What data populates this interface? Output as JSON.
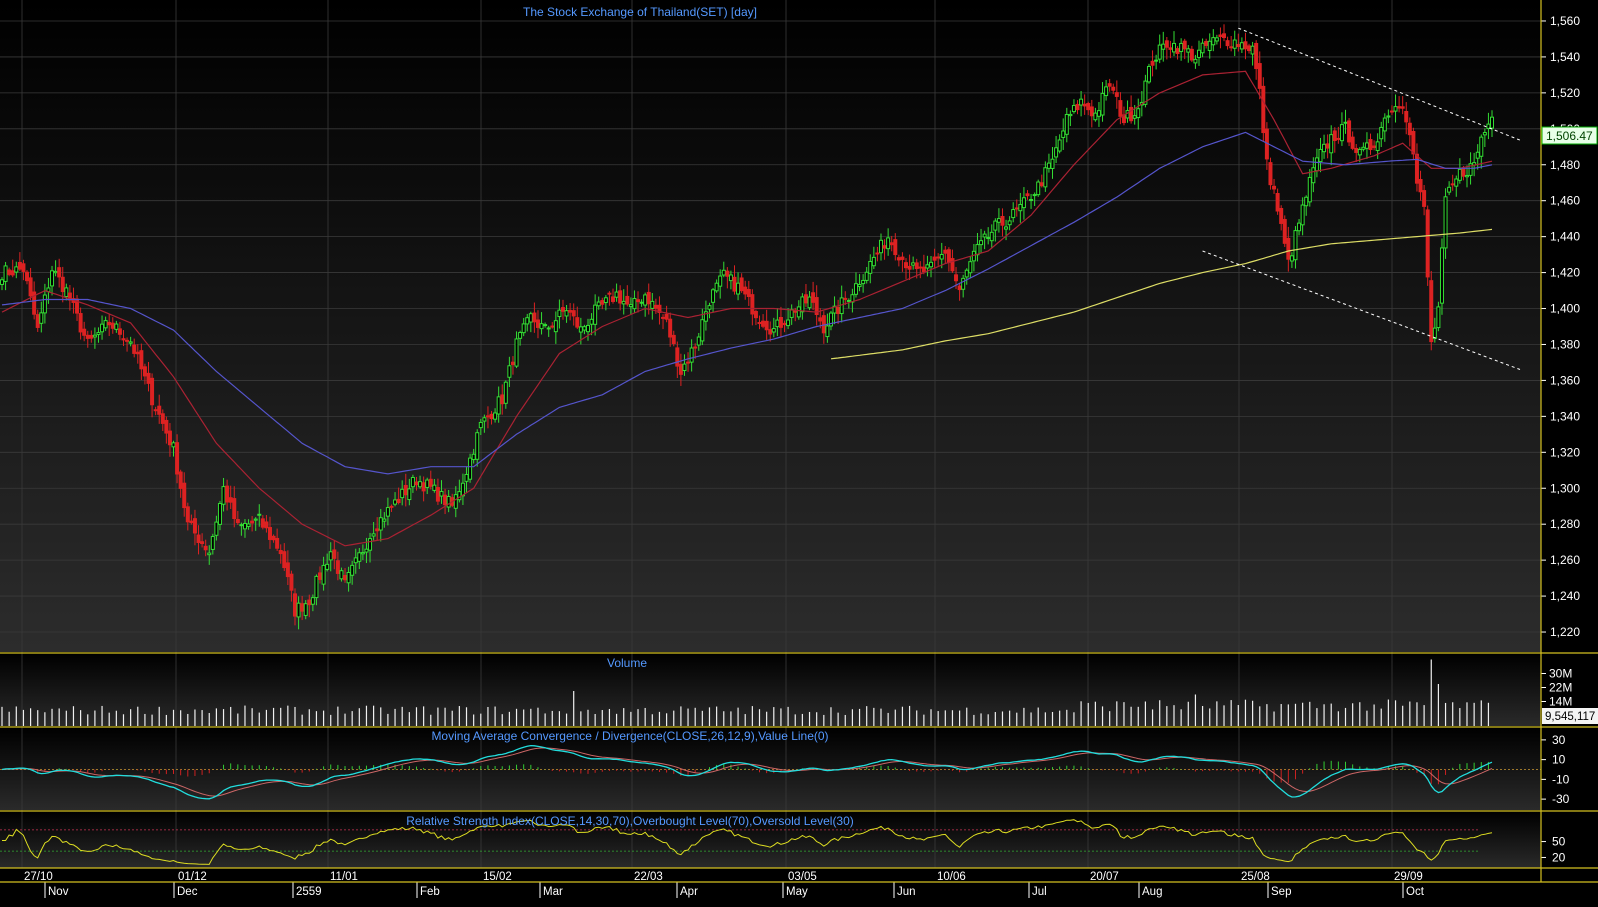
{
  "main": {
    "title": "The Stock Exchange of Thailand(SET) [day]",
    "y_ticks": [
      "1,560",
      "1,540",
      "1,520",
      "1,500",
      "1,480",
      "1,460",
      "1,440",
      "1,420",
      "1,400",
      "1,380",
      "1,360",
      "1,340",
      "1,320",
      "1,300",
      "1,280",
      "1,260",
      "1,240",
      "1,220"
    ],
    "last_price_label": "1,506.47"
  },
  "volume": {
    "title": "Volume",
    "y_ticks": [
      "30M",
      "22M",
      "14M"
    ],
    "last_value_label": "9,545,117"
  },
  "macd": {
    "title": "Moving Average Convergence / Divergence(CLOSE,26,12,9),Value Line(0)",
    "y_ticks": [
      "30",
      "10",
      "-10",
      "-30"
    ]
  },
  "rsi": {
    "title": "Relative Strength Index(CLOSE,14,30,70),Overbought Level(70),Oversold Level(30)",
    "y_ticks": [
      "50",
      "20"
    ]
  },
  "x_axis": {
    "dates": [
      "27/10",
      "01/12",
      "11/01",
      "15/02",
      "22/03",
      "03/05",
      "10/06",
      "20/07",
      "25/08",
      "29/09"
    ],
    "months": [
      "Nov",
      "Dec",
      "2559",
      "Feb",
      "Mar",
      "Apr",
      "May",
      "Jun",
      "Jul",
      "Aug",
      "Sep",
      "Oct"
    ]
  },
  "colors": {
    "background_top": "#000000",
    "background_bottom": "#2a2a2a",
    "up_candle": "#33dd33",
    "down_candle": "#dd2222",
    "ma_short": "#aa2233",
    "ma_mid": "#5555cc",
    "ma_long": "#dddd66",
    "trendline": "#ffffff",
    "panel_border": "#d4c020",
    "title_text": "#5599ff",
    "axis_text": "#ffffff",
    "price_label_bg": "#e8ffe8",
    "price_label_text": "#004400",
    "macd_line": "#22dddd",
    "macd_signal": "#cc6666",
    "rsi_line": "#dddd22"
  },
  "chart_data": {
    "type": "candlestick",
    "title": "The Stock Exchange of Thailand(SET) [day]",
    "ylim": [
      1210,
      1570
    ],
    "price_anchors": [
      [
        0,
        1420
      ],
      [
        6,
        1422
      ],
      [
        10,
        1388
      ],
      [
        14,
        1422
      ],
      [
        18,
        1410
      ],
      [
        24,
        1380
      ],
      [
        30,
        1392
      ],
      [
        36,
        1382
      ],
      [
        42,
        1350
      ],
      [
        48,
        1322
      ],
      [
        52,
        1280
      ],
      [
        58,
        1265
      ],
      [
        62,
        1300
      ],
      [
        66,
        1278
      ],
      [
        72,
        1282
      ],
      [
        78,
        1265
      ],
      [
        82,
        1232
      ],
      [
        86,
        1238
      ],
      [
        92,
        1265
      ],
      [
        96,
        1246
      ],
      [
        100,
        1262
      ],
      [
        104,
        1278
      ],
      [
        110,
        1292
      ],
      [
        116,
        1305
      ],
      [
        120,
        1300
      ],
      [
        126,
        1290
      ],
      [
        130,
        1310
      ],
      [
        134,
        1335
      ],
      [
        140,
        1350
      ],
      [
        144,
        1380
      ],
      [
        148,
        1395
      ],
      [
        152,
        1388
      ],
      [
        158,
        1400
      ],
      [
        162,
        1388
      ],
      [
        166,
        1398
      ],
      [
        172,
        1408
      ],
      [
        176,
        1400
      ],
      [
        180,
        1408
      ],
      [
        186,
        1392
      ],
      [
        190,
        1365
      ],
      [
        194,
        1380
      ],
      [
        198,
        1405
      ],
      [
        202,
        1418
      ],
      [
        206,
        1412
      ],
      [
        212,
        1395
      ],
      [
        216,
        1388
      ],
      [
        222,
        1400
      ],
      [
        226,
        1405
      ],
      [
        230,
        1390
      ],
      [
        234,
        1400
      ],
      [
        238,
        1410
      ],
      [
        242,
        1422
      ],
      [
        248,
        1440
      ],
      [
        252,
        1428
      ],
      [
        256,
        1420
      ],
      [
        260,
        1422
      ],
      [
        264,
        1432
      ],
      [
        268,
        1410
      ],
      [
        272,
        1430
      ],
      [
        278,
        1445
      ],
      [
        282,
        1450
      ],
      [
        286,
        1458
      ],
      [
        290,
        1468
      ],
      [
        294,
        1482
      ],
      [
        298,
        1505
      ],
      [
        302,
        1515
      ],
      [
        306,
        1508
      ],
      [
        310,
        1525
      ],
      [
        314,
        1505
      ],
      [
        318,
        1512
      ],
      [
        322,
        1538
      ],
      [
        326,
        1548
      ],
      [
        330,
        1545
      ],
      [
        334,
        1540
      ],
      [
        338,
        1548
      ],
      [
        342,
        1550
      ],
      [
        346,
        1548
      ],
      [
        350,
        1545
      ],
      [
        352,
        1520
      ],
      [
        354,
        1480
      ],
      [
        356,
        1465
      ],
      [
        358,
        1445
      ],
      [
        360,
        1425
      ],
      [
        362,
        1440
      ],
      [
        364,
        1455
      ],
      [
        366,
        1470
      ],
      [
        368,
        1482
      ],
      [
        372,
        1495
      ],
      [
        376,
        1500
      ],
      [
        380,
        1485
      ],
      [
        384,
        1492
      ],
      [
        388,
        1510
      ],
      [
        392,
        1515
      ],
      [
        394,
        1500
      ],
      [
        396,
        1470
      ],
      [
        398,
        1455
      ],
      [
        400,
        1380
      ],
      [
        402,
        1400
      ],
      [
        404,
        1460
      ],
      [
        408,
        1475
      ],
      [
        412,
        1480
      ],
      [
        414,
        1495
      ],
      [
        417,
        1506.47
      ]
    ],
    "ma_short_anchors": [
      [
        0,
        1398
      ],
      [
        12,
        1410
      ],
      [
        24,
        1402
      ],
      [
        36,
        1392
      ],
      [
        48,
        1362
      ],
      [
        60,
        1325
      ],
      [
        72,
        1300
      ],
      [
        84,
        1280
      ],
      [
        96,
        1268
      ],
      [
        108,
        1272
      ],
      [
        120,
        1285
      ],
      [
        132,
        1300
      ],
      [
        144,
        1340
      ],
      [
        156,
        1375
      ],
      [
        168,
        1390
      ],
      [
        180,
        1400
      ],
      [
        192,
        1395
      ],
      [
        204,
        1400
      ],
      [
        216,
        1400
      ],
      [
        228,
        1398
      ],
      [
        240,
        1405
      ],
      [
        252,
        1415
      ],
      [
        264,
        1425
      ],
      [
        276,
        1432
      ],
      [
        288,
        1452
      ],
      [
        300,
        1480
      ],
      [
        312,
        1505
      ],
      [
        324,
        1520
      ],
      [
        336,
        1530
      ],
      [
        348,
        1532
      ],
      [
        356,
        1505
      ],
      [
        364,
        1475
      ],
      [
        372,
        1478
      ],
      [
        384,
        1485
      ],
      [
        392,
        1492
      ],
      [
        400,
        1478
      ],
      [
        408,
        1478
      ],
      [
        417,
        1482
      ]
    ],
    "ma_mid_anchors": [
      [
        0,
        1402
      ],
      [
        12,
        1405
      ],
      [
        24,
        1405
      ],
      [
        36,
        1400
      ],
      [
        48,
        1388
      ],
      [
        60,
        1365
      ],
      [
        72,
        1345
      ],
      [
        84,
        1325
      ],
      [
        96,
        1312
      ],
      [
        108,
        1308
      ],
      [
        120,
        1312
      ],
      [
        132,
        1312
      ],
      [
        144,
        1330
      ],
      [
        156,
        1345
      ],
      [
        168,
        1352
      ],
      [
        180,
        1365
      ],
      [
        192,
        1372
      ],
      [
        204,
        1378
      ],
      [
        216,
        1383
      ],
      [
        228,
        1390
      ],
      [
        240,
        1395
      ],
      [
        252,
        1400
      ],
      [
        264,
        1410
      ],
      [
        276,
        1422
      ],
      [
        288,
        1435
      ],
      [
        300,
        1448
      ],
      [
        312,
        1462
      ],
      [
        324,
        1478
      ],
      [
        336,
        1490
      ],
      [
        348,
        1498
      ],
      [
        356,
        1490
      ],
      [
        364,
        1482
      ],
      [
        376,
        1480
      ],
      [
        388,
        1482
      ],
      [
        396,
        1483
      ],
      [
        404,
        1478
      ],
      [
        412,
        1478
      ],
      [
        417,
        1480
      ]
    ],
    "ma_long_anchors": [
      [
        232,
        1372
      ],
      [
        240,
        1374
      ],
      [
        252,
        1377
      ],
      [
        264,
        1382
      ],
      [
        276,
        1386
      ],
      [
        288,
        1392
      ],
      [
        300,
        1398
      ],
      [
        312,
        1406
      ],
      [
        324,
        1414
      ],
      [
        336,
        1420
      ],
      [
        348,
        1425
      ],
      [
        360,
        1432
      ],
      [
        372,
        1436
      ],
      [
        384,
        1438
      ],
      [
        396,
        1440
      ],
      [
        408,
        1442
      ],
      [
        417,
        1444
      ]
    ],
    "trendlines": [
      [
        [
          346,
          1556
        ],
        [
          417,
          1500
        ]
      ],
      [
        [
          336,
          1432
        ],
        [
          417,
          1372
        ]
      ]
    ],
    "volume_ylim": [
      0,
      40000000
    ],
    "volume_base": 9000000,
    "volume_spikes": [
      [
        160,
        20000000
      ],
      [
        320,
        14000000
      ],
      [
        334,
        18000000
      ],
      [
        400,
        38000000
      ],
      [
        401,
        28000000
      ],
      [
        402,
        24000000
      ],
      [
        403,
        16000000
      ]
    ],
    "macd_ylim": [
      -40,
      40
    ],
    "rsi_ylim": [
      0,
      100
    ],
    "rsi_overbought": 70,
    "rsi_oversold": 30
  }
}
